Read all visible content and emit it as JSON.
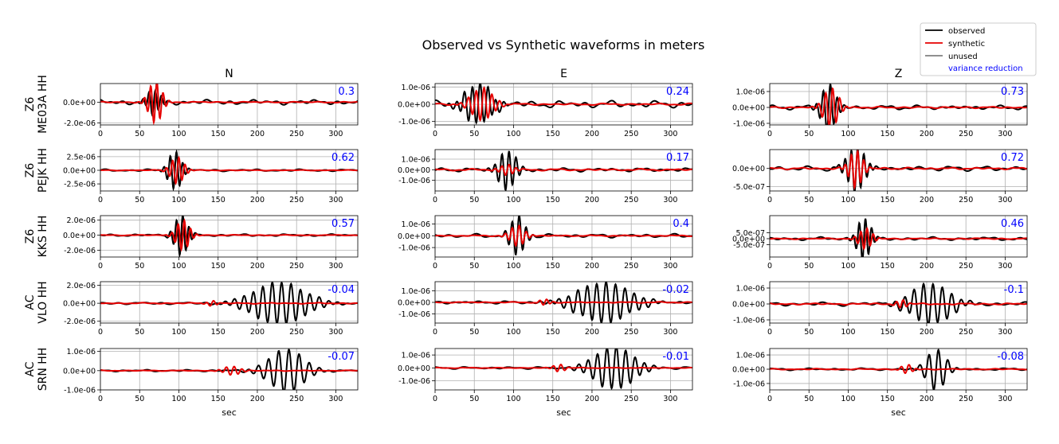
{
  "figure": {
    "title": "Observed vs Synthetic waveforms in meters",
    "column_titles": [
      "N",
      "E",
      "Z"
    ],
    "xlabel": "sec",
    "x_ticks": [
      0,
      50,
      100,
      150,
      200,
      250,
      300
    ],
    "xlim": [
      0,
      328
    ],
    "legend": {
      "position": "top-right",
      "entries": [
        {
          "label": "observed",
          "color": "#000000"
        },
        {
          "label": "synthetic",
          "color": "#e60000"
        },
        {
          "label": "unused",
          "color": "#808080"
        }
      ],
      "text_entry": {
        "label": "variance reduction",
        "color": "#0000ff"
      }
    },
    "colors": {
      "observed": "#000000",
      "synthetic": "#e60000",
      "variance_reduction": "#0000ff",
      "grid": "#b0b0b0"
    }
  },
  "chart_data": {
    "type": "line",
    "stations": [
      {
        "network": "Z6",
        "station": "ME03A HH",
        "panels": [
          {
            "component": "N",
            "variance_reduction": "0.3",
            "ylim": [
              -2.2e-06,
              1.8e-06
            ],
            "yticks": [
              {
                "v": 0,
                "label": "0.0e+00"
              },
              {
                "v": -2e-06,
                "label": "-2.0e-06"
              }
            ],
            "observed": {
              "arrival": 68,
              "amp": 0.55,
              "cycles": 3.0,
              "period": 8,
              "noise": 0.12,
              "seed": 11
            },
            "synthetic": {
              "arrival": 70,
              "amp": 0.95,
              "cycles": 3.0,
              "period": 8,
              "noise": 0.03,
              "seed": 12
            }
          },
          {
            "component": "E",
            "variance_reduction": "0.24",
            "ylim": [
              -1.2e-06,
              1.2e-06
            ],
            "yticks": [
              {
                "v": 1e-06,
                "label": "1.0e-06"
              },
              {
                "v": 0,
                "label": "0.0e+00"
              },
              {
                "v": -1e-06,
                "label": "-1.0e-06"
              }
            ],
            "observed": {
              "arrival": 55,
              "amp": 1.0,
              "cycles": 5.0,
              "period": 10,
              "noise": 0.2,
              "seed": 21
            },
            "synthetic": {
              "arrival": 60,
              "amp": 0.8,
              "cycles": 4.0,
              "period": 10,
              "noise": 0.05,
              "seed": 22
            }
          },
          {
            "component": "Z",
            "variance_reduction": "0.73",
            "ylim": [
              -1.1e-06,
              1.5e-06
            ],
            "yticks": [
              {
                "v": 1e-06,
                "label": "1.0e-06"
              },
              {
                "v": 0,
                "label": "0.0e+00"
              },
              {
                "v": -1e-06,
                "label": "-1.0e-06"
              }
            ],
            "observed": {
              "arrival": 75,
              "amp": 1.0,
              "cycles": 3.0,
              "period": 9,
              "noise": 0.1,
              "seed": 31
            },
            "synthetic": {
              "arrival": 78,
              "amp": 0.85,
              "cycles": 3.0,
              "period": 9,
              "noise": 0.04,
              "seed": 32
            }
          }
        ]
      },
      {
        "network": "Z6",
        "station": "PEJK HH",
        "panels": [
          {
            "component": "N",
            "variance_reduction": "0.62",
            "ylim": [
              -3.8e-06,
              3.8e-06
            ],
            "yticks": [
              {
                "v": 2.5e-06,
                "label": "2.5e-06"
              },
              {
                "v": 0,
                "label": "0.0e+00"
              },
              {
                "v": -2.5e-06,
                "label": "-2.5e-06"
              }
            ],
            "observed": {
              "arrival": 95,
              "amp": 0.95,
              "cycles": 3.0,
              "period": 8,
              "noise": 0.06,
              "seed": 41
            },
            "synthetic": {
              "arrival": 98,
              "amp": 0.65,
              "cycles": 3.0,
              "period": 8,
              "noise": 0.02,
              "seed": 42
            }
          },
          {
            "component": "E",
            "variance_reduction": "0.17",
            "ylim": [
              -2e-06,
              1.9e-06
            ],
            "yticks": [
              {
                "v": 1e-06,
                "label": "1.0e-06"
              },
              {
                "v": 0,
                "label": "0.0e+00"
              },
              {
                "v": -1e-06,
                "label": "-1.0e-06"
              }
            ],
            "observed": {
              "arrival": 92,
              "amp": 0.95,
              "cycles": 3.5,
              "period": 9,
              "noise": 0.1,
              "seed": 51
            },
            "synthetic": {
              "arrival": 92,
              "amp": 0.25,
              "cycles": 3.0,
              "period": 9,
              "noise": 0.05,
              "seed": 52
            }
          },
          {
            "component": "Z",
            "variance_reduction": "0.72",
            "ylim": [
              -6.2e-07,
              5.2e-07
            ],
            "yticks": [
              {
                "v": 0,
                "label": "0.0e+00"
              },
              {
                "v": -5e-07,
                "label": "-5.0e-07"
              }
            ],
            "observed": {
              "arrival": 110,
              "amp": 1.0,
              "cycles": 4.0,
              "period": 8,
              "noise": 0.12,
              "seed": 61
            },
            "synthetic": {
              "arrival": 110,
              "amp": 0.85,
              "cycles": 3.0,
              "period": 8,
              "noise": 0.05,
              "seed": 62
            }
          }
        ]
      },
      {
        "network": "Z6",
        "station": "KKS HH",
        "panels": [
          {
            "component": "N",
            "variance_reduction": "0.57",
            "ylim": [
              -2.9e-06,
              2.6e-06
            ],
            "yticks": [
              {
                "v": 2e-06,
                "label": "2.0e-06"
              },
              {
                "v": 0,
                "label": "0.0e+00"
              },
              {
                "v": -2e-06,
                "label": "-2.0e-06"
              }
            ],
            "observed": {
              "arrival": 103,
              "amp": 0.95,
              "cycles": 3.0,
              "period": 8,
              "noise": 0.06,
              "seed": 71
            },
            "synthetic": {
              "arrival": 105,
              "amp": 0.7,
              "cycles": 3.0,
              "period": 8,
              "noise": 0.02,
              "seed": 72
            }
          },
          {
            "component": "E",
            "variance_reduction": "0.4",
            "ylim": [
              -1.8e-06,
              1.7e-06
            ],
            "yticks": [
              {
                "v": 1e-06,
                "label": "1.0e-06"
              },
              {
                "v": 0,
                "label": "0.0e+00"
              },
              {
                "v": -1e-06,
                "label": "-1.0e-06"
              }
            ],
            "observed": {
              "arrival": 105,
              "amp": 0.95,
              "cycles": 3.0,
              "period": 9,
              "noise": 0.1,
              "seed": 81
            },
            "synthetic": {
              "arrival": 105,
              "amp": 0.5,
              "cycles": 3.0,
              "period": 9,
              "noise": 0.03,
              "seed": 82
            }
          },
          {
            "component": "Z",
            "variance_reduction": "0.46",
            "ylim": [
              -1.55e-06,
              1.95e-06
            ],
            "yticks": [
              {
                "v": 5e-07,
                "label": "5.0e-07"
              },
              {
                "v": 0,
                "label": "0.0e+00"
              },
              {
                "v": -5e-07,
                "label": "-5.0e-07"
              }
            ],
            "observed": {
              "arrival": 120,
              "amp": 0.95,
              "cycles": 3.0,
              "period": 8,
              "noise": 0.08,
              "seed": 91
            },
            "synthetic": {
              "arrival": 122,
              "amp": 0.45,
              "cycles": 3.0,
              "period": 8,
              "noise": 0.03,
              "seed": 92
            }
          }
        ]
      },
      {
        "network": "AC",
        "station": "VLO HH",
        "panels": [
          {
            "component": "N",
            "variance_reduction": "-0.04",
            "ylim": [
              -2.2e-06,
              2.4e-06
            ],
            "yticks": [
              {
                "v": 2e-06,
                "label": "2.0e-06"
              },
              {
                "v": 0,
                "label": "0.0e+00"
              },
              {
                "v": -2e-06,
                "label": "-2.0e-06"
              }
            ],
            "observed": {
              "arrival": 228,
              "amp": 1.0,
              "cycles": 8.0,
              "period": 12,
              "noise": 0.06,
              "seed": 101
            },
            "synthetic": {
              "arrival": 142,
              "amp": 0.12,
              "cycles": 2.0,
              "period": 9,
              "noise": 0.03,
              "seed": 102
            }
          },
          {
            "component": "E",
            "variance_reduction": "-0.02",
            "ylim": [
              -1.8e-06,
              1.8e-06
            ],
            "yticks": [
              {
                "v": 1e-06,
                "label": "1.0e-06"
              },
              {
                "v": 0,
                "label": "0.0e+00"
              },
              {
                "v": -1e-06,
                "label": "-1.0e-06"
              }
            ],
            "observed": {
              "arrival": 215,
              "amp": 1.0,
              "cycles": 8.0,
              "period": 12,
              "noise": 0.08,
              "seed": 111
            },
            "synthetic": {
              "arrival": 140,
              "amp": 0.15,
              "cycles": 2.0,
              "period": 9,
              "noise": 0.03,
              "seed": 112
            }
          },
          {
            "component": "Z",
            "variance_reduction": "-0.1",
            "ylim": [
              -1.2e-06,
              1.4e-06
            ],
            "yticks": [
              {
                "v": 1e-06,
                "label": "1.0e-06"
              },
              {
                "v": 0,
                "label": "0.0e+00"
              },
              {
                "v": -1e-06,
                "label": "-1.0e-06"
              }
            ],
            "observed": {
              "arrival": 205,
              "amp": 0.95,
              "cycles": 6.0,
              "period": 12,
              "noise": 0.1,
              "seed": 121
            },
            "synthetic": {
              "arrival": 168,
              "amp": 0.2,
              "cycles": 2.0,
              "period": 9,
              "noise": 0.04,
              "seed": 122
            }
          }
        ]
      },
      {
        "network": "AC",
        "station": "SRN HH",
        "panels": [
          {
            "component": "N",
            "variance_reduction": "-0.07",
            "ylim": [
              -1e-06,
              1.15e-06
            ],
            "yticks": [
              {
                "v": 1e-06,
                "label": "1.0e-06"
              },
              {
                "v": 0,
                "label": "0.0e+00"
              },
              {
                "v": -1e-06,
                "label": "-1.0e-06"
              }
            ],
            "observed": {
              "arrival": 237,
              "amp": 1.0,
              "cycles": 5.0,
              "period": 13,
              "noise": 0.05,
              "seed": 131
            },
            "synthetic": {
              "arrival": 168,
              "amp": 0.2,
              "cycles": 3.0,
              "period": 10,
              "noise": 0.02,
              "seed": 132
            }
          },
          {
            "component": "E",
            "variance_reduction": "-0.01",
            "ylim": [
              -1.7e-06,
              1.5e-06
            ],
            "yticks": [
              {
                "v": 1e-06,
                "label": "1.0e-06"
              },
              {
                "v": 0,
                "label": "0.0e+00"
              },
              {
                "v": -1e-06,
                "label": "-1.0e-06"
              }
            ],
            "observed": {
              "arrival": 228,
              "amp": 1.0,
              "cycles": 6.0,
              "period": 12,
              "noise": 0.06,
              "seed": 141
            },
            "synthetic": {
              "arrival": 158,
              "amp": 0.18,
              "cycles": 2.0,
              "period": 10,
              "noise": 0.02,
              "seed": 142
            }
          },
          {
            "component": "Z",
            "variance_reduction": "-0.08",
            "ylim": [
              -1.45e-06,
              1.45e-06
            ],
            "yticks": [
              {
                "v": 1e-06,
                "label": "1.0e-06"
              },
              {
                "v": 0,
                "label": "0.0e+00"
              },
              {
                "v": -1e-06,
                "label": "-1.0e-06"
              }
            ],
            "observed": {
              "arrival": 212,
              "amp": 1.0,
              "cycles": 3.0,
              "period": 12,
              "noise": 0.06,
              "seed": 151
            },
            "synthetic": {
              "arrival": 175,
              "amp": 0.22,
              "cycles": 2.0,
              "period": 10,
              "noise": 0.03,
              "seed": 152
            }
          }
        ]
      }
    ]
  }
}
